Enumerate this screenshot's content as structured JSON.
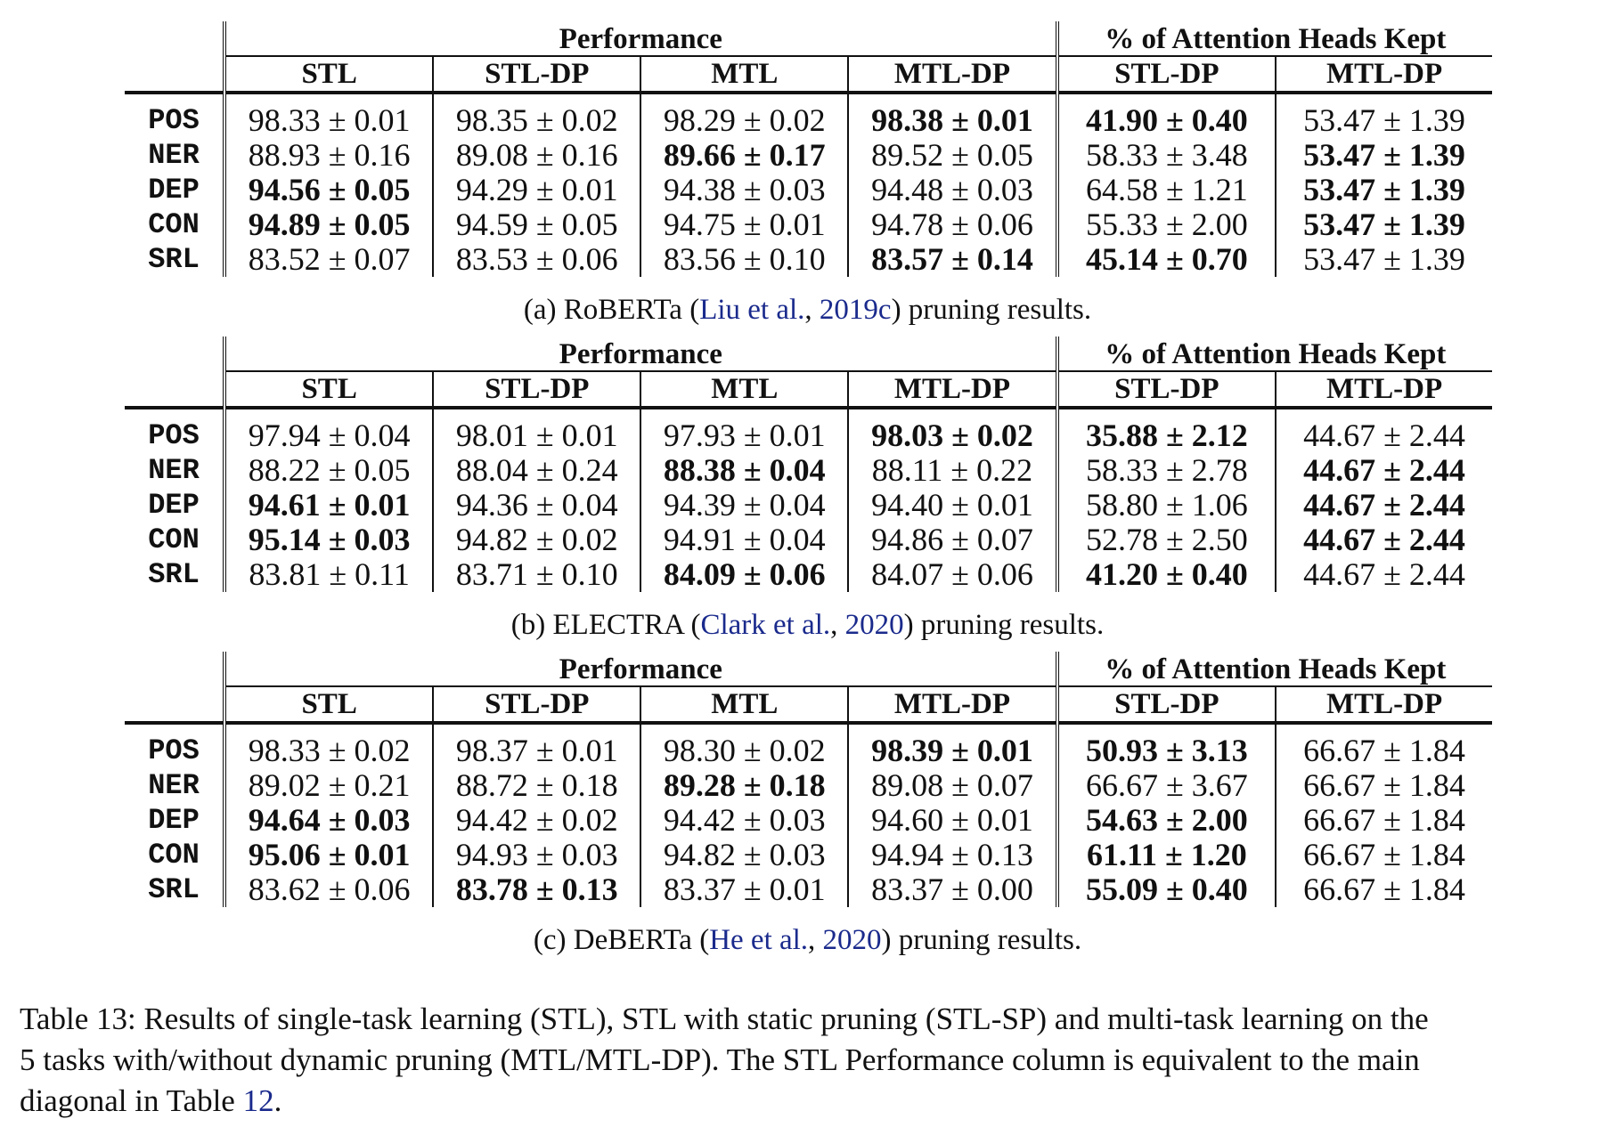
{
  "header": {
    "group_performance": "Performance",
    "group_heads": "% of Attention Heads Kept",
    "cols": [
      "STL",
      "STL-DP",
      "MTL",
      "MTL-DP",
      "STL-DP",
      "MTL-DP"
    ]
  },
  "tables": [
    {
      "caption_pre": "(a) RoBERTa (",
      "caption_cite": "Liu et al.",
      "caption_sep": ", ",
      "caption_year": "2019c",
      "caption_post": ") pruning results.",
      "rows": [
        {
          "task": "POS",
          "cells": [
            "98.33 ± 0.01",
            "98.35 ± 0.02",
            "98.29 ± 0.02",
            "98.38 ± 0.01",
            "41.90 ± 0.40",
            "53.47 ± 1.39"
          ],
          "bold": [
            false,
            false,
            false,
            true,
            true,
            false
          ]
        },
        {
          "task": "NER",
          "cells": [
            "88.93 ± 0.16",
            "89.08 ± 0.16",
            "89.66 ± 0.17",
            "89.52 ± 0.05",
            "58.33 ± 3.48",
            "53.47 ± 1.39"
          ],
          "bold": [
            false,
            false,
            true,
            false,
            false,
            true
          ]
        },
        {
          "task": "DEP",
          "cells": [
            "94.56 ± 0.05",
            "94.29 ± 0.01",
            "94.38 ± 0.03",
            "94.48 ± 0.03",
            "64.58 ± 1.21",
            "53.47 ± 1.39"
          ],
          "bold": [
            true,
            false,
            false,
            false,
            false,
            true
          ]
        },
        {
          "task": "CON",
          "cells": [
            "94.89 ± 0.05",
            "94.59 ± 0.05",
            "94.75 ± 0.01",
            "94.78 ± 0.06",
            "55.33 ± 2.00",
            "53.47 ± 1.39"
          ],
          "bold": [
            true,
            false,
            false,
            false,
            false,
            true
          ]
        },
        {
          "task": "SRL",
          "cells": [
            "83.52 ± 0.07",
            "83.53 ± 0.06",
            "83.56 ± 0.10",
            "83.57 ± 0.14",
            "45.14 ± 0.70",
            "53.47 ± 1.39"
          ],
          "bold": [
            false,
            false,
            false,
            true,
            true,
            false
          ]
        }
      ]
    },
    {
      "caption_pre": "(b) ELECTRA (",
      "caption_cite": "Clark et al.",
      "caption_sep": ", ",
      "caption_year": "2020",
      "caption_post": ") pruning results.",
      "rows": [
        {
          "task": "POS",
          "cells": [
            "97.94 ± 0.04",
            "98.01 ± 0.01",
            "97.93 ± 0.01",
            "98.03 ± 0.02",
            "35.88 ± 2.12",
            "44.67 ± 2.44"
          ],
          "bold": [
            false,
            false,
            false,
            true,
            true,
            false
          ]
        },
        {
          "task": "NER",
          "cells": [
            "88.22 ± 0.05",
            "88.04 ± 0.24",
            "88.38 ± 0.04",
            "88.11 ± 0.22",
            "58.33 ± 2.78",
            "44.67 ± 2.44"
          ],
          "bold": [
            false,
            false,
            true,
            false,
            false,
            true
          ]
        },
        {
          "task": "DEP",
          "cells": [
            "94.61 ± 0.01",
            "94.36 ± 0.04",
            "94.39 ± 0.04",
            "94.40 ± 0.01",
            "58.80 ± 1.06",
            "44.67 ± 2.44"
          ],
          "bold": [
            true,
            false,
            false,
            false,
            false,
            true
          ]
        },
        {
          "task": "CON",
          "cells": [
            "95.14 ± 0.03",
            "94.82 ± 0.02",
            "94.91 ± 0.04",
            "94.86 ± 0.07",
            "52.78 ± 2.50",
            "44.67 ± 2.44"
          ],
          "bold": [
            true,
            false,
            false,
            false,
            false,
            true
          ]
        },
        {
          "task": "SRL",
          "cells": [
            "83.81 ± 0.11",
            "83.71 ± 0.10",
            "84.09 ± 0.06",
            "84.07 ± 0.06",
            "41.20 ± 0.40",
            "44.67 ± 2.44"
          ],
          "bold": [
            false,
            false,
            true,
            false,
            true,
            false
          ]
        }
      ]
    },
    {
      "caption_pre": "(c) DeBERTa (",
      "caption_cite": "He et al.",
      "caption_sep": ", ",
      "caption_year": "2020",
      "caption_post": ") pruning results.",
      "rows": [
        {
          "task": "POS",
          "cells": [
            "98.33 ± 0.02",
            "98.37 ± 0.01",
            "98.30 ± 0.02",
            "98.39 ± 0.01",
            "50.93 ± 3.13",
            "66.67 ± 1.84"
          ],
          "bold": [
            false,
            false,
            false,
            true,
            true,
            false
          ]
        },
        {
          "task": "NER",
          "cells": [
            "89.02 ± 0.21",
            "88.72 ± 0.18",
            "89.28 ± 0.18",
            "89.08 ± 0.07",
            "66.67 ± 3.67",
            "66.67 ± 1.84"
          ],
          "bold": [
            false,
            false,
            true,
            false,
            false,
            false
          ]
        },
        {
          "task": "DEP",
          "cells": [
            "94.64 ± 0.03",
            "94.42 ± 0.02",
            "94.42 ± 0.03",
            "94.60 ± 0.01",
            "54.63 ± 2.00",
            "66.67 ± 1.84"
          ],
          "bold": [
            true,
            false,
            false,
            false,
            true,
            false
          ]
        },
        {
          "task": "CON",
          "cells": [
            "95.06 ± 0.01",
            "94.93 ± 0.03",
            "94.82 ± 0.03",
            "94.94 ± 0.13",
            "61.11 ± 1.20",
            "66.67 ± 1.84"
          ],
          "bold": [
            true,
            false,
            false,
            false,
            true,
            false
          ]
        },
        {
          "task": "SRL",
          "cells": [
            "83.62 ± 0.06",
            "83.78 ± 0.13",
            "83.37 ± 0.01",
            "83.37 ± 0.00",
            "55.09 ± 0.40",
            "66.67 ± 1.84"
          ],
          "bold": [
            false,
            true,
            false,
            false,
            true,
            false
          ]
        }
      ]
    }
  ],
  "main_caption": {
    "line1": "Table 13: Results of single-task learning (STL), STL with static pruning (STL-SP) and multi-task learning on the",
    "line2": "5 tasks with/without dynamic pruning (MTL/MTL-DP). The STL Performance column is equivalent to the main",
    "line3_pre": "diagonal in Table ",
    "line3_ref": "12",
    "line3_post": "."
  }
}
